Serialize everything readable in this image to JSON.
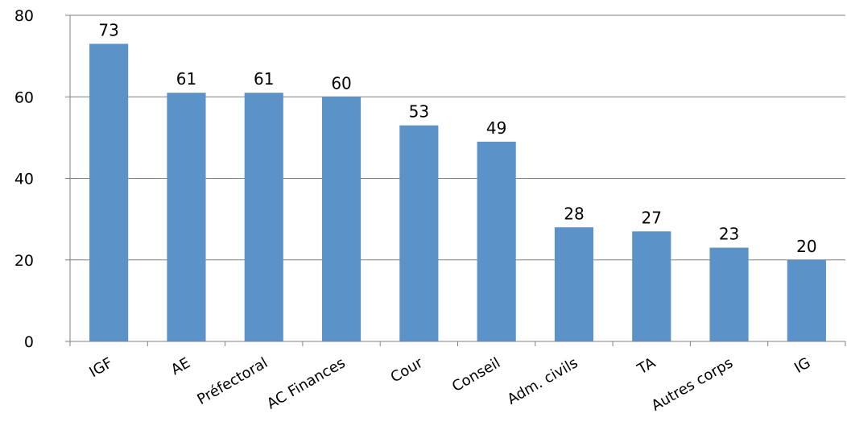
{
  "chart_data": {
    "type": "bar",
    "categories": [
      "IGF",
      "AE",
      "Préfectoral",
      "AC Finances",
      "Cour",
      "Conseil",
      "Adm. civils",
      "TA",
      "Autres corps",
      "IG"
    ],
    "values": [
      73,
      61,
      61,
      60,
      53,
      49,
      28,
      27,
      23,
      20
    ],
    "data_labels": [
      "73",
      "61",
      "61",
      "60",
      "53",
      "49",
      "28",
      "27",
      "23",
      "20"
    ],
    "y_ticks": [
      "0",
      "20",
      "40",
      "60",
      "80"
    ],
    "ylim": [
      0,
      80
    ],
    "grid": true,
    "legend": "none",
    "category_label_rotation": "-30°",
    "colors": {
      "bar": "#5b93c8",
      "grid": "#808080",
      "axis": "#808080"
    }
  }
}
